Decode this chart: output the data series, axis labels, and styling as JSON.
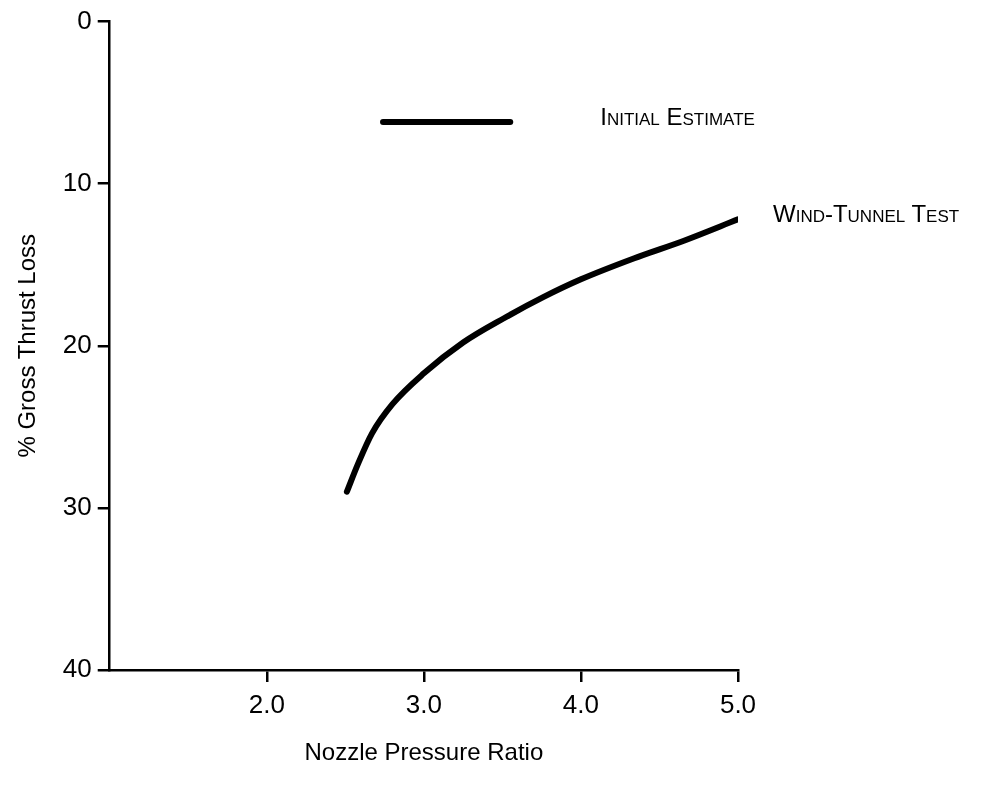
{
  "chart_data": {
    "type": "line",
    "xlabel": "Nozzle Pressure Ratio",
    "ylabel": "% Gross Thrust Loss",
    "xlim": [
      1.0,
      5.0
    ],
    "xticks": [
      {
        "value": 2,
        "label": "2.0"
      },
      {
        "value": 3,
        "label": "3.0"
      },
      {
        "value": 4,
        "label": "4.0"
      },
      {
        "value": 5,
        "label": "5.0"
      }
    ],
    "ylim": [
      40,
      0
    ],
    "yticks": [
      0,
      10,
      20,
      30,
      40
    ],
    "grid": false,
    "legend": false,
    "marker": "none",
    "line_style": "solid",
    "series": [
      {
        "name": "Initial Estimate",
        "color": "#000000",
        "x": [
          2.74,
          3.55
        ],
        "values": [
          6.2,
          6.2
        ]
      },
      {
        "name": "Wind-Tunnel Test",
        "color": "#000000",
        "x": [
          2.51,
          2.58,
          2.67,
          2.8,
          3.0,
          3.25,
          3.51,
          3.76,
          4.0,
          4.34,
          4.66,
          5.0
        ],
        "values": [
          29.0,
          27.3,
          25.4,
          23.6,
          21.7,
          19.8,
          18.3,
          17.0,
          15.9,
          14.6,
          13.5,
          12.2
        ]
      }
    ]
  }
}
